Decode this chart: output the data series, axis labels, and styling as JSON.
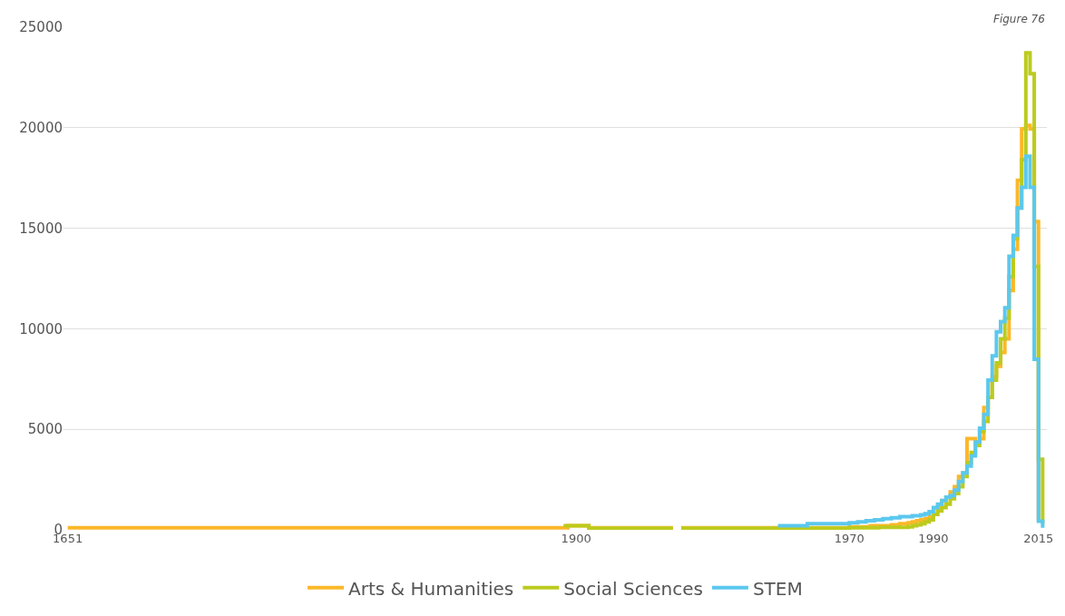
{
  "chart_data": {
    "type": "step",
    "annotations": [
      "Figure 76"
    ],
    "categories": [
      "1651",
      null,
      null,
      null,
      null,
      null,
      null,
      null,
      null,
      null,
      null,
      null,
      null,
      null,
      null,
      null,
      null,
      null,
      null,
      null,
      null,
      null,
      null,
      null,
      null,
      null,
      null,
      null,
      null,
      null,
      null,
      null,
      null,
      null,
      null,
      null,
      null,
      null,
      null,
      null,
      null,
      null,
      null,
      null,
      null,
      null,
      null,
      null,
      null,
      null,
      null,
      null,
      null,
      null,
      null,
      null,
      null,
      null,
      null,
      null,
      null,
      null,
      null,
      null,
      null,
      null,
      null,
      null,
      null,
      null,
      null,
      null,
      null,
      null,
      null,
      null,
      null,
      null,
      null,
      null,
      null,
      null,
      null,
      null,
      null,
      null,
      null,
      null,
      null,
      null,
      null,
      null,
      null,
      null,
      null,
      null,
      null,
      null,
      null,
      null,
      null,
      null,
      null,
      null,
      null,
      null,
      null,
      null,
      null,
      null,
      null,
      null,
      null,
      null,
      null,
      null,
      null,
      null,
      null,
      null,
      null,
      "1900",
      null,
      null,
      null,
      null,
      null,
      null,
      null,
      null,
      null,
      null,
      null,
      null,
      null,
      null,
      null,
      null,
      null,
      null,
      null,
      null,
      null,
      null,
      null,
      null,
      null,
      null,
      null,
      null,
      null,
      null,
      null,
      null,
      null,
      null,
      null,
      null,
      null,
      null,
      null,
      null,
      null,
      null,
      null,
      null,
      null,
      null,
      null,
      null,
      null,
      null,
      null,
      null,
      null,
      null,
      null,
      null,
      null,
      null,
      null,
      null,
      null,
      null,
      null,
      null,
      "1970",
      null,
      null,
      null,
      null,
      null,
      null,
      null,
      null,
      null,
      null,
      null,
      null,
      null,
      null,
      null,
      null,
      null,
      null,
      null,
      "1990",
      null,
      null,
      null,
      null,
      null,
      null,
      null,
      null,
      null,
      null,
      null,
      null,
      null,
      null,
      null,
      null,
      null,
      null,
      null,
      null,
      null,
      null,
      null,
      null,
      "2015",
      null
    ],
    "series": [
      {
        "name": "Arts & Humanities",
        "color": "#fbb829",
        "values": [
          100,
          100,
          100,
          100,
          100,
          100,
          100,
          100,
          100,
          100,
          100,
          100,
          100,
          100,
          100,
          100,
          100,
          100,
          100,
          100,
          100,
          100,
          100,
          100,
          100,
          100,
          100,
          100,
          100,
          100,
          100,
          100,
          100,
          100,
          100,
          100,
          100,
          100,
          100,
          100,
          100,
          100,
          100,
          100,
          100,
          100,
          100,
          100,
          100,
          100,
          100,
          100,
          100,
          100,
          100,
          100,
          100,
          100,
          100,
          100,
          100,
          100,
          100,
          100,
          100,
          100,
          100,
          100,
          100,
          100,
          100,
          100,
          100,
          100,
          100,
          100,
          100,
          100,
          100,
          100,
          100,
          100,
          100,
          100,
          100,
          100,
          100,
          100,
          100,
          100,
          100,
          100,
          100,
          100,
          100,
          100,
          100,
          100,
          100,
          100,
          100,
          100,
          100,
          100,
          100,
          100,
          100,
          100,
          100,
          100,
          100,
          100,
          100,
          100,
          100,
          100,
          100,
          100,
          100,
          200,
          200,
          200,
          200,
          200,
          100,
          100,
          100,
          100,
          100,
          100,
          100,
          100,
          100,
          100,
          100,
          100,
          100,
          100,
          100,
          100,
          100,
          100,
          100,
          100,
          100,
          null,
          100,
          100,
          100,
          100,
          100,
          100,
          100,
          100,
          100,
          100,
          100,
          100,
          100,
          100,
          100,
          100,
          100,
          100,
          100,
          100,
          100,
          100,
          100,
          100,
          100,
          100,
          100,
          100,
          100,
          100,
          100,
          100,
          100,
          100,
          100,
          100,
          100,
          100,
          100,
          100,
          150,
          150,
          150,
          150,
          150,
          200,
          200,
          200,
          200,
          200,
          250,
          250,
          300,
          300,
          350,
          400,
          450,
          500,
          550,
          650,
          770,
          1110,
          1460,
          1630,
          1880,
          2140,
          2650,
          2830,
          4540,
          4540,
          4370,
          4540,
          6080,
          6590,
          7620,
          8130,
          8820,
          9500,
          11900,
          13960,
          17380,
          19950,
          20120,
          19950,
          15330,
          430,
          null
        ]
      },
      {
        "name": "Social Sciences",
        "color": "#bccb1e",
        "values": [
          null,
          null,
          null,
          null,
          null,
          null,
          null,
          null,
          null,
          null,
          null,
          null,
          null,
          null,
          null,
          null,
          null,
          null,
          null,
          null,
          null,
          null,
          null,
          null,
          null,
          null,
          null,
          null,
          null,
          null,
          null,
          null,
          null,
          null,
          null,
          null,
          null,
          null,
          null,
          null,
          null,
          null,
          null,
          null,
          null,
          null,
          null,
          null,
          null,
          null,
          null,
          null,
          null,
          null,
          null,
          null,
          null,
          null,
          null,
          null,
          null,
          null,
          null,
          null,
          null,
          null,
          null,
          null,
          null,
          null,
          null,
          null,
          null,
          null,
          null,
          null,
          null,
          null,
          null,
          null,
          null,
          null,
          null,
          null,
          null,
          null,
          null,
          null,
          null,
          null,
          null,
          null,
          null,
          null,
          null,
          null,
          null,
          null,
          null,
          null,
          null,
          null,
          null,
          null,
          null,
          null,
          null,
          null,
          null,
          null,
          null,
          null,
          null,
          null,
          null,
          null,
          null,
          null,
          200,
          200,
          200,
          200,
          200,
          200,
          80,
          80,
          80,
          80,
          80,
          80,
          80,
          80,
          80,
          80,
          80,
          80,
          80,
          80,
          80,
          80,
          80,
          80,
          80,
          80,
          80,
          null,
          80,
          80,
          80,
          80,
          80,
          80,
          80,
          80,
          80,
          80,
          80,
          80,
          80,
          80,
          80,
          80,
          80,
          80,
          80,
          80,
          80,
          80,
          80,
          80,
          80,
          80,
          80,
          80,
          80,
          80,
          80,
          80,
          80,
          80,
          80,
          80,
          80,
          80,
          80,
          80,
          100,
          100,
          100,
          100,
          100,
          100,
          100,
          120,
          120,
          120,
          120,
          120,
          120,
          120,
          150,
          200,
          250,
          300,
          400,
          500,
          770,
          940,
          1100,
          1280,
          1540,
          1800,
          2140,
          2650,
          3340,
          3850,
          4200,
          4880,
          5390,
          6590,
          7450,
          8300,
          9500,
          10530,
          12590,
          14470,
          16010,
          18410,
          23720,
          22690,
          13100,
          3510,
          300
        ]
      },
      {
        "name": "STEM",
        "color": "#5bc8ee",
        "values": [
          null,
          null,
          null,
          null,
          null,
          null,
          null,
          null,
          null,
          null,
          null,
          null,
          null,
          null,
          null,
          null,
          null,
          null,
          null,
          null,
          null,
          null,
          null,
          null,
          null,
          null,
          null,
          null,
          null,
          null,
          null,
          null,
          null,
          null,
          null,
          null,
          null,
          null,
          null,
          null,
          null,
          null,
          null,
          null,
          null,
          null,
          null,
          null,
          null,
          null,
          null,
          null,
          null,
          null,
          null,
          null,
          null,
          null,
          null,
          null,
          null,
          null,
          null,
          null,
          null,
          null,
          null,
          null,
          null,
          null,
          null,
          null,
          null,
          null,
          null,
          null,
          null,
          null,
          null,
          null,
          null,
          null,
          null,
          null,
          null,
          null,
          null,
          null,
          null,
          null,
          null,
          null,
          null,
          null,
          null,
          null,
          null,
          null,
          null,
          null,
          null,
          null,
          null,
          null,
          null,
          null,
          null,
          null,
          null,
          null,
          null,
          null,
          null,
          null,
          null,
          null,
          null,
          null,
          null,
          null,
          null,
          null,
          null,
          null,
          null,
          null,
          null,
          null,
          null,
          null,
          null,
          null,
          null,
          null,
          null,
          null,
          null,
          null,
          null,
          null,
          null,
          null,
          null,
          null,
          null,
          null,
          null,
          null,
          null,
          null,
          null,
          null,
          null,
          null,
          null,
          null,
          null,
          null,
          null,
          null,
          null,
          null,
          null,
          null,
          null,
          null,
          null,
          null,
          null,
          200,
          200,
          200,
          200,
          200,
          200,
          200,
          300,
          300,
          300,
          300,
          300,
          300,
          300,
          300,
          300,
          300,
          350,
          350,
          400,
          400,
          450,
          450,
          500,
          500,
          550,
          550,
          600,
          600,
          650,
          650,
          650,
          700,
          700,
          750,
          800,
          900,
          1100,
          1280,
          1450,
          1630,
          1700,
          1970,
          2400,
          2830,
          3170,
          3680,
          4370,
          5050,
          5740,
          7450,
          8650,
          9850,
          10360,
          11040,
          13610,
          14640,
          16010,
          17040,
          18580,
          17040,
          8480,
          430,
          100
        ]
      }
    ],
    "ylim": [
      0,
      25000
    ],
    "yticks": [
      0,
      5000,
      10000,
      15000,
      20000,
      25000
    ],
    "grid": "y",
    "legend": "bottom",
    "marker": "none",
    "line_style": "solid"
  }
}
